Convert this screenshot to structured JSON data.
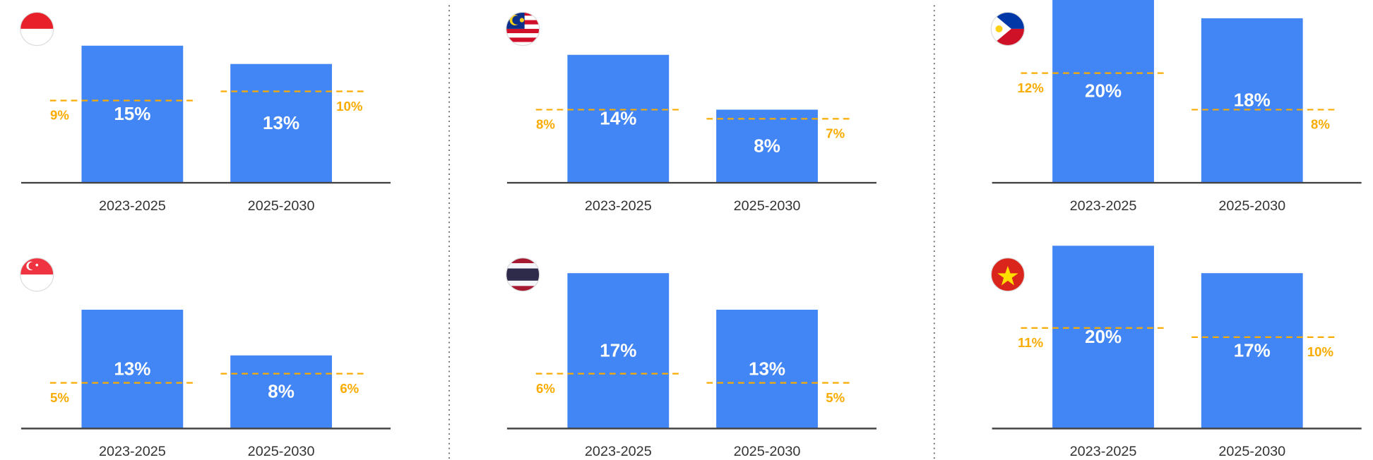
{
  "chart_data": [
    {
      "type": "bar",
      "categories": [
        "2023-2025",
        "2025-2030"
      ],
      "values": [
        15,
        13
      ],
      "value_labels": [
        "15%",
        "13%"
      ],
      "color": "#4285f4",
      "ylim": [
        0,
        20
      ],
      "reference_lines": {
        "values": [
          9,
          10
        ],
        "value_labels": [
          "9%",
          "10%"
        ],
        "color": "#f9ab00"
      }
    },
    {
      "type": "bar",
      "categories": [
        "2023-2025",
        "2025-2030"
      ],
      "values": [
        14,
        8
      ],
      "value_labels": [
        "14%",
        "8%"
      ],
      "color": "#4285f4",
      "ylim": [
        0,
        20
      ],
      "reference_lines": {
        "values": [
          8,
          7
        ],
        "value_labels": [
          "8%",
          "7%"
        ],
        "color": "#f9ab00"
      }
    },
    {
      "type": "bar",
      "categories": [
        "2023-2025",
        "2025-2030"
      ],
      "values": [
        20,
        18
      ],
      "value_labels": [
        "20%",
        "18%"
      ],
      "color": "#4285f4",
      "ylim": [
        0,
        20
      ],
      "reference_lines": {
        "values": [
          12,
          8
        ],
        "value_labels": [
          "12%",
          "8%"
        ],
        "color": "#f9ab00"
      }
    },
    {
      "type": "bar",
      "categories": [
        "2023-2025",
        "2025-2030"
      ],
      "values": [
        13,
        8
      ],
      "value_labels": [
        "13%",
        "8%"
      ],
      "color": "#4285f4",
      "ylim": [
        0,
        20
      ],
      "reference_lines": {
        "values": [
          5,
          6
        ],
        "value_labels": [
          "5%",
          "6%"
        ],
        "color": "#f9ab00"
      }
    },
    {
      "type": "bar",
      "categories": [
        "2023-2025",
        "2025-2030"
      ],
      "values": [
        17,
        13
      ],
      "value_labels": [
        "17%",
        "13%"
      ],
      "color": "#4285f4",
      "ylim": [
        0,
        20
      ],
      "reference_lines": {
        "values": [
          6,
          5
        ],
        "value_labels": [
          "6%",
          "5%"
        ],
        "color": "#f9ab00"
      }
    },
    {
      "type": "bar",
      "categories": [
        "2023-2025",
        "2025-2030"
      ],
      "values": [
        20,
        17
      ],
      "value_labels": [
        "20%",
        "17%"
      ],
      "color": "#4285f4",
      "ylim": [
        0,
        20
      ],
      "reference_lines": {
        "values": [
          11,
          10
        ],
        "value_labels": [
          "11%",
          "10%"
        ],
        "color": "#f9ab00"
      }
    }
  ]
}
